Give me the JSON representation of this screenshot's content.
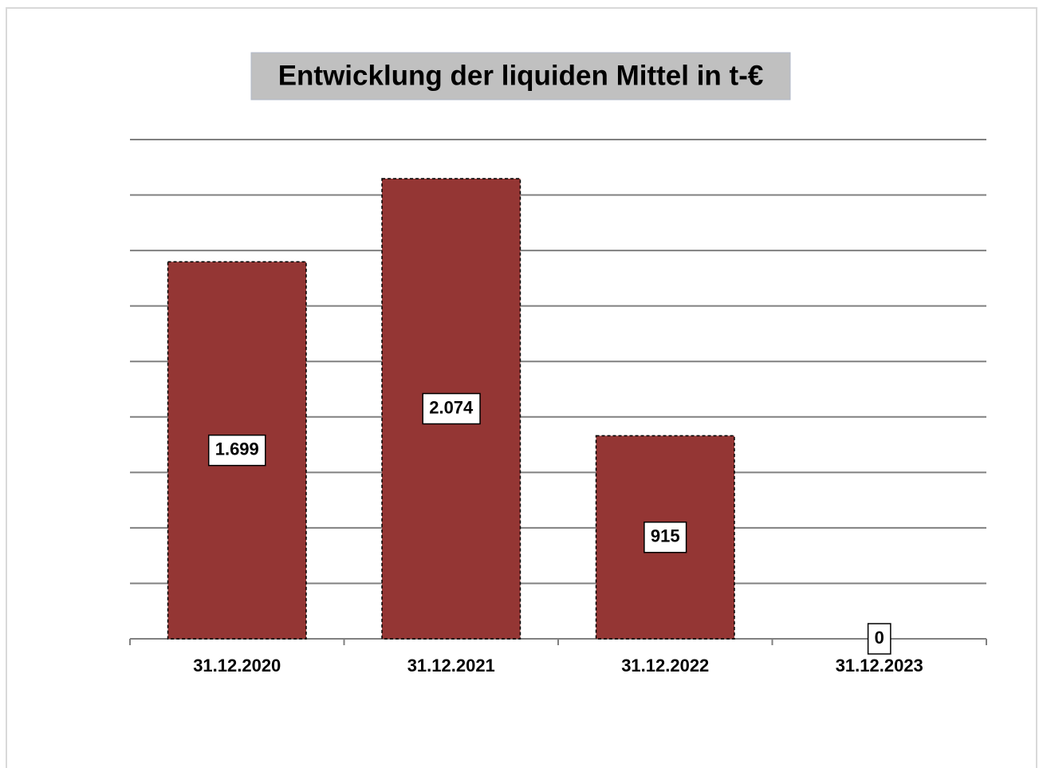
{
  "chart_data": {
    "type": "bar",
    "title": "Entwicklung der liquiden Mittel in t-€",
    "categories": [
      "31.12.2020",
      "31.12.2021",
      "31.12.2022",
      "31.12.2023"
    ],
    "values": [
      1699,
      2074,
      915,
      0
    ],
    "value_labels": [
      "1.699",
      "2.074",
      "915",
      "0"
    ],
    "color": "#943634",
    "ylim": [
      0,
      2250
    ],
    "yticks": [
      0,
      250,
      500,
      750,
      1000,
      1250,
      1500,
      1750,
      2000,
      2250
    ],
    "grid": true
  }
}
